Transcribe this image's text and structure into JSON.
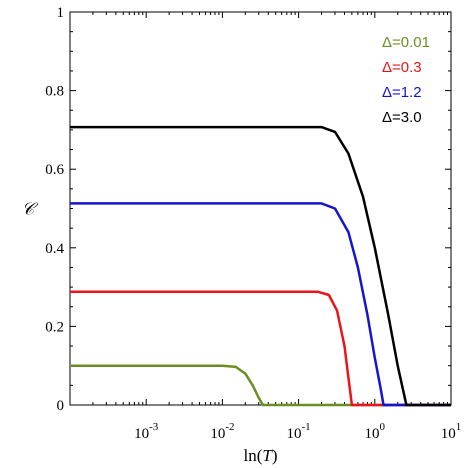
{
  "chart_data": {
    "type": "line",
    "title": "",
    "xlabel": "ln(T)",
    "ylabel": "𝒞",
    "xscale": "log",
    "xlim": [
      0.0001,
      10
    ],
    "ylim": [
      0,
      1
    ],
    "grid": false,
    "legend_position": "top-right",
    "x_ticks": [
      {
        "base": "10",
        "exp": "-3",
        "value": 0.001
      },
      {
        "base": "10",
        "exp": "-2",
        "value": 0.01
      },
      {
        "base": "10",
        "exp": "-1",
        "value": 0.1
      },
      {
        "base": "10",
        "exp": "0",
        "value": 1
      },
      {
        "base": "10",
        "exp": "1",
        "value": 10
      }
    ],
    "y_ticks": [
      "0",
      "0.2",
      "0.4",
      "0.6",
      "0.8",
      "1"
    ],
    "y_tick_values": [
      0,
      0.2,
      0.4,
      0.6,
      0.8,
      1
    ],
    "series": [
      {
        "name": "Δ=0.01",
        "color": "#6b8e23",
        "points": [
          [
            0.0001,
            0.1
          ],
          [
            0.01,
            0.1
          ],
          [
            0.015,
            0.097
          ],
          [
            0.02,
            0.08
          ],
          [
            0.025,
            0.05
          ],
          [
            0.03,
            0.018
          ],
          [
            0.034,
            0.0
          ],
          [
            10,
            0.0
          ]
        ]
      },
      {
        "name": "Δ=0.3",
        "color": "#e8151a",
        "points": [
          [
            0.0001,
            0.288
          ],
          [
            0.18,
            0.288
          ],
          [
            0.25,
            0.28
          ],
          [
            0.32,
            0.24
          ],
          [
            0.4,
            0.15
          ],
          [
            0.45,
            0.07
          ],
          [
            0.5,
            0.0
          ],
          [
            10,
            0.0
          ]
        ]
      },
      {
        "name": "Δ=1.2",
        "color": "#1515d0",
        "points": [
          [
            0.0001,
            0.513
          ],
          [
            0.2,
            0.513
          ],
          [
            0.3,
            0.5
          ],
          [
            0.45,
            0.44
          ],
          [
            0.6,
            0.35
          ],
          [
            0.8,
            0.23
          ],
          [
            1.0,
            0.12
          ],
          [
            1.2,
            0.04
          ],
          [
            1.3,
            0.0
          ],
          [
            10,
            0.0
          ]
        ]
      },
      {
        "name": "Δ=3.0",
        "color": "#000000",
        "points": [
          [
            0.0001,
            0.707
          ],
          [
            0.2,
            0.707
          ],
          [
            0.3,
            0.695
          ],
          [
            0.45,
            0.64
          ],
          [
            0.7,
            0.53
          ],
          [
            1.0,
            0.4
          ],
          [
            1.5,
            0.23
          ],
          [
            2.0,
            0.1
          ],
          [
            2.6,
            0.0
          ],
          [
            10,
            0.0
          ]
        ]
      }
    ]
  }
}
